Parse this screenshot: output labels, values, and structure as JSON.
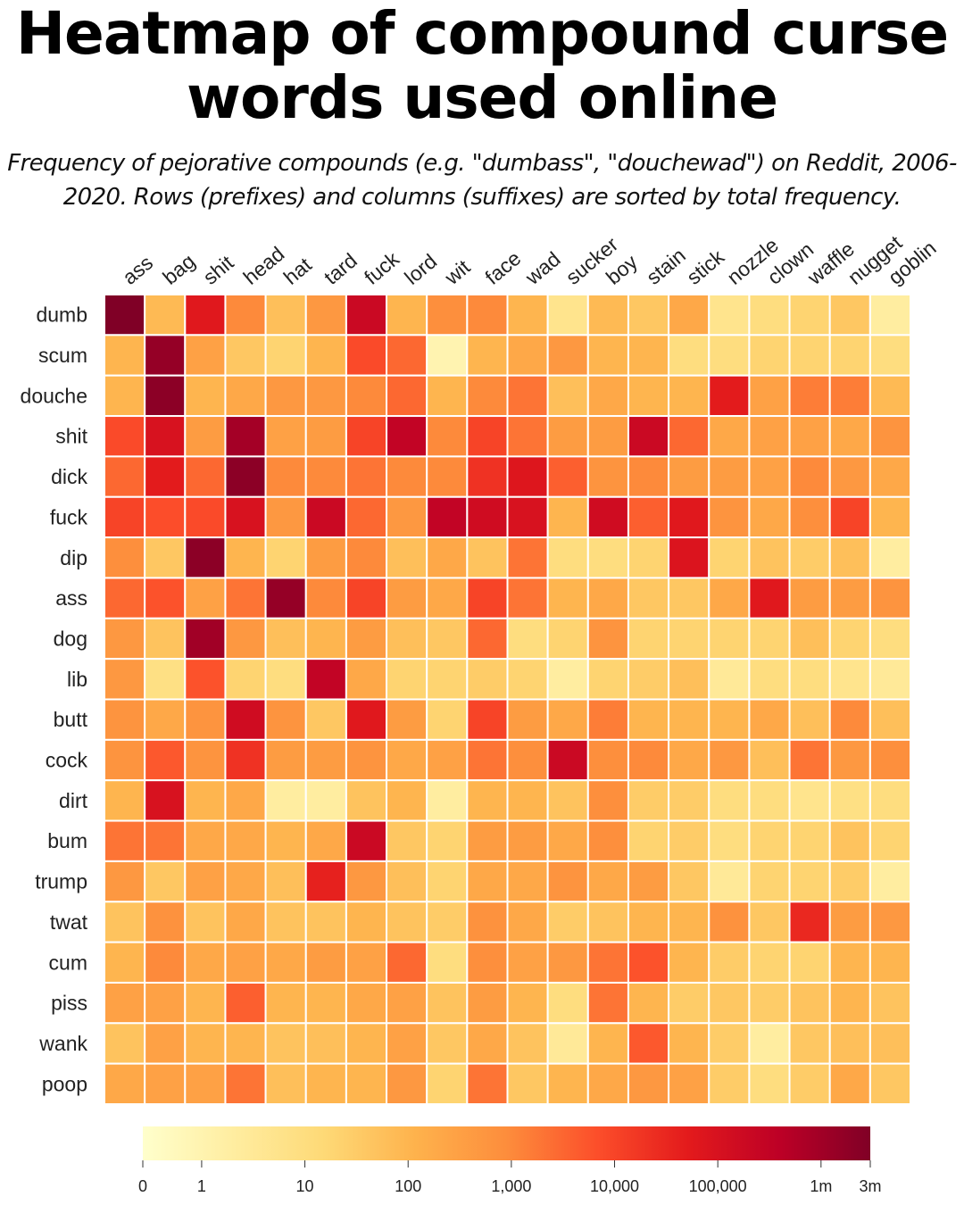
{
  "chart_data": {
    "type": "heatmap",
    "title": "Heatmap of compound curse words used online",
    "subtitle": "Frequency of pejorative compounds (e.g. \"dumbass\", \"douchewad\") on Reddit, 2006-2020. Rows (prefixes) and columns (suffixes) are sorted by total frequency.",
    "rows": [
      "dumb",
      "scum",
      "douche",
      "shit",
      "dick",
      "fuck",
      "dip",
      "ass",
      "dog",
      "lib",
      "butt",
      "cock",
      "dirt",
      "bum",
      "trump",
      "twat",
      "cum",
      "piss",
      "wank",
      "poop"
    ],
    "columns": [
      "ass",
      "bag",
      "shit",
      "head",
      "hat",
      "tard",
      "fuck",
      "lord",
      "wit",
      "face",
      "wad",
      "sucker",
      "boy",
      "stain",
      "stick",
      "nozzle",
      "clown",
      "waffle",
      "nugget",
      "goblin"
    ],
    "values": [
      [
        3000000,
        80,
        60000,
        1000,
        60,
        500,
        200000,
        100,
        800,
        1000,
        100,
        5,
        80,
        40,
        200,
        5,
        10,
        20,
        40,
        2
      ],
      [
        100,
        1500000,
        300,
        40,
        20,
        100,
        8000,
        3000,
        1,
        100,
        200,
        500,
        100,
        100,
        10,
        10,
        20,
        20,
        20,
        10
      ],
      [
        100,
        2000000,
        100,
        200,
        500,
        500,
        1000,
        3000,
        100,
        1000,
        2000,
        60,
        200,
        100,
        100,
        50000,
        300,
        1500,
        1500,
        80
      ],
      [
        8000,
        100000,
        400,
        900000,
        300,
        400,
        10000,
        300000,
        1000,
        10000,
        2000,
        400,
        400,
        200000,
        3000,
        200,
        300,
        300,
        200,
        600
      ],
      [
        3000,
        50000,
        3000,
        2000000,
        1000,
        1000,
        2000,
        1000,
        1000,
        20000,
        70000,
        4000,
        600,
        1000,
        400,
        400,
        300,
        1000,
        500,
        200
      ],
      [
        10000,
        7000,
        8000,
        100000,
        500,
        200000,
        3000,
        500,
        300000,
        150000,
        100000,
        100,
        150000,
        4000,
        60000,
        600,
        200,
        800,
        10000,
        100
      ],
      [
        800,
        40,
        2000000,
        100,
        20,
        400,
        1000,
        60,
        200,
        50,
        2000,
        10,
        10,
        20,
        80000,
        20,
        50,
        30,
        60,
        2
      ],
      [
        3000,
        6000,
        300,
        2000,
        1500000,
        1000,
        10000,
        400,
        200,
        10000,
        2000,
        100,
        200,
        40,
        40,
        200,
        60000,
        400,
        400,
        600
      ],
      [
        500,
        50,
        1000000,
        500,
        60,
        100,
        400,
        60,
        40,
        3000,
        10,
        20,
        600,
        20,
        20,
        20,
        20,
        60,
        20,
        10
      ],
      [
        500,
        8,
        6000,
        20,
        10,
        300000,
        200,
        20,
        20,
        30,
        20,
        2,
        20,
        30,
        60,
        3,
        10,
        10,
        5,
        3
      ],
      [
        600,
        200,
        600,
        150000,
        600,
        40,
        60000,
        400,
        20,
        10000,
        400,
        200,
        1500,
        100,
        100,
        100,
        200,
        60,
        1000,
        60
      ],
      [
        600,
        5000,
        600,
        20000,
        400,
        400,
        600,
        200,
        300,
        2000,
        800,
        200000,
        800,
        1000,
        200,
        500,
        60,
        2000,
        500,
        800
      ],
      [
        100,
        100000,
        100,
        200,
        2,
        2,
        50,
        100,
        2,
        100,
        100,
        50,
        800,
        30,
        30,
        10,
        10,
        5,
        8,
        10
      ],
      [
        2000,
        2000,
        200,
        200,
        100,
        200,
        200000,
        40,
        20,
        400,
        400,
        200,
        800,
        20,
        30,
        10,
        20,
        20,
        50,
        20
      ],
      [
        500,
        40,
        300,
        200,
        60,
        40000,
        500,
        60,
        20,
        200,
        200,
        600,
        200,
        400,
        40,
        3,
        20,
        20,
        30,
        2
      ],
      [
        50,
        700,
        50,
        200,
        50,
        50,
        100,
        50,
        30,
        700,
        200,
        30,
        50,
        100,
        100,
        700,
        40,
        30000,
        400,
        500
      ],
      [
        100,
        1000,
        200,
        300,
        200,
        400,
        300,
        3000,
        10,
        800,
        300,
        500,
        2000,
        6000,
        100,
        30,
        20,
        20,
        100,
        100
      ],
      [
        300,
        300,
        100,
        4000,
        100,
        100,
        200,
        300,
        50,
        400,
        100,
        10,
        2000,
        100,
        30,
        40,
        30,
        50,
        100,
        50
      ],
      [
        50,
        300,
        100,
        100,
        50,
        60,
        100,
        300,
        40,
        200,
        50,
        3,
        100,
        5000,
        100,
        30,
        2,
        40,
        60,
        60
      ],
      [
        200,
        300,
        300,
        2000,
        60,
        100,
        100,
        500,
        20,
        2000,
        40,
        100,
        200,
        500,
        300,
        30,
        10,
        30,
        200,
        40
      ]
    ],
    "colormap": [
      "#ffffcc",
      "#ffeda0",
      "#fed976",
      "#feb24c",
      "#fd8d3c",
      "#fc4e2a",
      "#e31a1c",
      "#bd0026",
      "#800026"
    ],
    "zlim": [
      0,
      3000000
    ],
    "zticks": [
      0,
      1,
      10,
      100,
      {
        "value": 1000,
        "label": "1,000"
      },
      {
        "value": 10000,
        "label": "10,000"
      },
      {
        "value": 100000,
        "label": "100,000"
      },
      {
        "value": 1000000,
        "label": "1m"
      },
      {
        "value": 3000000,
        "label": "3m"
      }
    ]
  }
}
